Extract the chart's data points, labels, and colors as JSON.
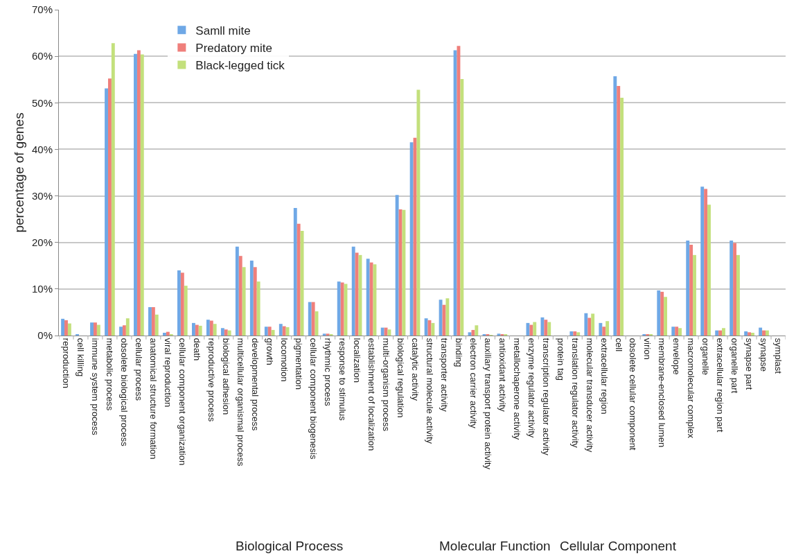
{
  "chart_data": {
    "type": "bar",
    "ylabel": "percentage of genes",
    "categories": [
      "reproduction",
      "cell killing",
      "immune system process",
      "metabolic process",
      "obsolete biological process",
      "cellular process",
      "anatomical structure formation",
      "viral reproduction",
      "cellular component organization",
      "death",
      "reproductive process",
      "biological adhesion",
      "multicellular organismal process",
      "developmental process",
      "growth",
      "locomotion",
      "pigmentation",
      "cellular component biogenesis",
      "rhythmic process",
      "response to stimulus",
      "localization",
      "establishment of localization",
      "multi-organism process",
      "biological regulation",
      "catalytic activity",
      "structural molecule activity",
      "transporter activity",
      "binding",
      "electron carrier activity",
      "auxiliary transport protein activity",
      "antioxidant activity",
      "metallochaperone activity",
      "enzyme regulator activity",
      "transcription regulator activity",
      "protein tag",
      "translation regulator activity",
      "molecular transducer activity",
      "extracellular region",
      "cell",
      "obsolete cellular component",
      "virion",
      "membrane-enclosed lumen",
      "envelope",
      "macromolecular complex",
      "organelle",
      "extracellular region part",
      "organelle part",
      "synapse part",
      "synapse",
      "symplast"
    ],
    "series": [
      {
        "name": "Samll mite",
        "color": "#6fa8e6",
        "values": [
          3.6,
          0.2,
          2.8,
          53.1,
          1.9,
          60.5,
          6.1,
          0.6,
          14.0,
          2.7,
          3.4,
          1.6,
          19.1,
          16.1,
          1.9,
          2.5,
          27.4,
          7.2,
          0.4,
          11.6,
          19.1,
          16.5,
          1.7,
          30.2,
          41.5,
          3.7,
          7.7,
          61.3,
          0.7,
          0.2,
          0.4,
          0,
          2.7,
          3.9,
          0,
          0.9,
          4.8,
          2.7,
          55.7,
          0,
          0.3,
          9.7,
          1.9,
          20.4,
          32.0,
          1.1,
          20.4,
          0.9,
          1.7,
          0
        ]
      },
      {
        "name": "Predatory mite",
        "color": "#ef7f7b",
        "values": [
          3.3,
          0,
          2.8,
          55.2,
          2.2,
          61.3,
          6.1,
          0.8,
          13.5,
          2.3,
          3.2,
          1.3,
          17.1,
          14.7,
          1.9,
          2.0,
          24.0,
          7.2,
          0.4,
          11.4,
          17.8,
          15.7,
          1.7,
          27.1,
          42.5,
          3.3,
          6.6,
          62.2,
          1.2,
          0.2,
          0.3,
          0,
          2.3,
          3.4,
          0,
          0.9,
          3.8,
          1.9,
          53.6,
          0,
          0.3,
          9.4,
          1.9,
          19.5,
          31.5,
          1.1,
          19.9,
          0.7,
          1.1,
          0
        ]
      },
      {
        "name": "Black-legged tick",
        "color": "#c3e07c",
        "values": [
          2.6,
          0,
          2.3,
          62.8,
          3.7,
          60.4,
          4.5,
          0.3,
          10.7,
          2.1,
          2.5,
          1.1,
          14.7,
          11.6,
          1.2,
          1.8,
          22.5,
          5.2,
          0.2,
          11.1,
          17.3,
          15.3,
          1.3,
          27.0,
          52.8,
          2.7,
          8.0,
          55.1,
          2.2,
          0.1,
          0.2,
          0,
          2.9,
          2.9,
          0,
          0.7,
          4.7,
          3.1,
          51.1,
          0,
          0.3,
          8.3,
          1.6,
          17.3,
          28.1,
          1.6,
          17.3,
          0.6,
          1.1,
          0
        ]
      }
    ],
    "ylim": [
      0,
      70
    ],
    "yticks": [
      {
        "value": 0,
        "label": "0%"
      },
      {
        "value": 10,
        "label": "10%"
      },
      {
        "value": 20,
        "label": "20%"
      },
      {
        "value": 30,
        "label": "30%"
      },
      {
        "value": 40,
        "label": "40%"
      },
      {
        "value": 50,
        "label": "50%"
      },
      {
        "value": 60,
        "label": "60%"
      },
      {
        "value": 70,
        "label": "70%"
      }
    ],
    "grid": "y",
    "legend": "top left",
    "annotations": [
      "Biological Process",
      "Molecular Function",
      "Cellular Component"
    ]
  }
}
